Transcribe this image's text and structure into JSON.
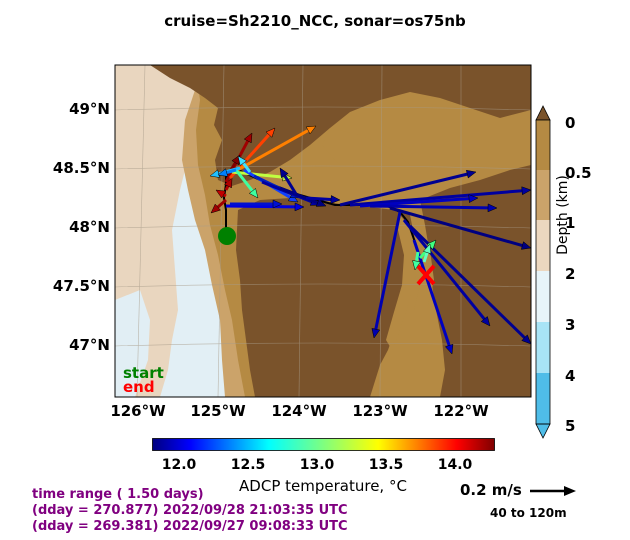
{
  "title": "cruise=Sh2210_NCC,   sonar=os75nb",
  "map": {
    "lat_labels": [
      "49°N",
      "48.5°N",
      "48°N",
      "47.5°N",
      "47°N"
    ],
    "lon_labels": [
      "126°W",
      "125°W",
      "124°W",
      "123°W",
      "122°W"
    ],
    "start_label": "start",
    "end_label": "end",
    "start_color": "#008000",
    "end_color": "#ff0000"
  },
  "depth_colorbar": {
    "label": "Depth (km)",
    "ticks": [
      "0",
      "0.5",
      "1",
      "2",
      "3",
      "4",
      "5"
    ],
    "colors": [
      "#b58a43",
      "#cba36a",
      "#ecd7bf",
      "#e7f4f9",
      "#a8e4f6",
      "#4fbde8"
    ]
  },
  "temp_colorbar": {
    "label": "ADCP temperature, °C",
    "ticks": [
      "12.0",
      "12.5",
      "13.0",
      "13.5",
      "14.0"
    ]
  },
  "scale": {
    "label": "0.2 m/s",
    "depth_range": "40 to 120m"
  },
  "info": {
    "line1": "time range ( 1.50 days)",
    "line2": "(dday = 270.877) 2022/09/28 21:03:35 UTC",
    "line3": "(dday = 269.381) 2022/09/27 09:08:33 UTC"
  }
}
